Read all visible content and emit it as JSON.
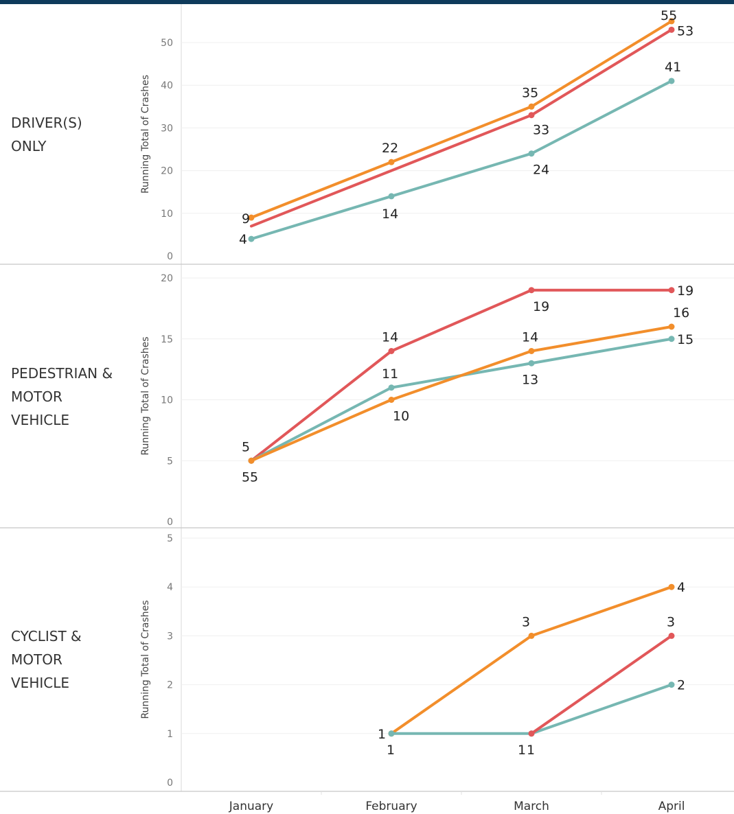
{
  "colors": {
    "series_a": "#e15759",
    "series_b": "#f28e2b",
    "series_c": "#76b7b2",
    "header_bar": "#0e3a5b"
  },
  "chart_data": {
    "type": "line",
    "x": [
      "January",
      "February",
      "March",
      "April"
    ],
    "ylabel": "Running Total of Crashes",
    "grid": true,
    "panels": [
      {
        "label_lines": [
          "DRIVER(S)",
          "ONLY"
        ],
        "ylim": [
          0,
          55
        ],
        "yticks": [
          0,
          10,
          20,
          30,
          40,
          50
        ],
        "series": [
          {
            "color": "#f28e2b",
            "values": [
              9,
              22,
              35,
              55
            ],
            "show_points": [
              true,
              true,
              true,
              true
            ],
            "labels": [
              "9",
              "22",
              "35",
              "55"
            ]
          },
          {
            "color": "#e15759",
            "values": [
              7,
              20,
              33,
              53
            ],
            "show_points": [
              false,
              false,
              true,
              true
            ],
            "labels": [
              "",
              "",
              "33",
              "53"
            ]
          },
          {
            "color": "#76b7b2",
            "values": [
              4,
              14,
              24,
              41
            ],
            "show_points": [
              true,
              true,
              true,
              true
            ],
            "labels": [
              "4",
              "14",
              "24",
              "41"
            ]
          }
        ]
      },
      {
        "label_lines": [
          "PEDESTRIAN &",
          "MOTOR",
          "VEHICLE"
        ],
        "ylim": [
          0,
          20
        ],
        "yticks": [
          0,
          5,
          10,
          15,
          20
        ],
        "series": [
          {
            "color": "#e15759",
            "values": [
              5,
              14,
              19,
              19
            ],
            "show_points": [
              true,
              true,
              true,
              true
            ],
            "labels": [
              "5",
              "14",
              "19",
              "19"
            ]
          },
          {
            "color": "#76b7b2",
            "values": [
              5,
              11,
              13,
              15
            ],
            "show_points": [
              true,
              true,
              true,
              true
            ],
            "labels": [
              "5",
              "11",
              "13",
              "15"
            ]
          },
          {
            "color": "#f28e2b",
            "values": [
              5,
              10,
              14,
              16
            ],
            "show_points": [
              true,
              true,
              true,
              true
            ],
            "labels": [
              "5",
              "10",
              "14",
              "16"
            ]
          }
        ]
      },
      {
        "label_lines": [
          "CYCLIST &",
          "MOTOR",
          "VEHICLE"
        ],
        "ylim": [
          0,
          5
        ],
        "yticks": [
          0,
          1,
          2,
          3,
          4,
          5
        ],
        "series": [
          {
            "color": "#f28e2b",
            "values": [
              null,
              1,
              3,
              4
            ],
            "show_points": [
              false,
              true,
              true,
              true
            ],
            "labels": [
              "",
              "1",
              "3",
              "4"
            ]
          },
          {
            "color": "#76b7b2",
            "values": [
              null,
              1,
              1,
              2
            ],
            "show_points": [
              false,
              true,
              true,
              true
            ],
            "labels": [
              "",
              "1",
              "1",
              "2"
            ]
          },
          {
            "color": "#e15759",
            "values": [
              null,
              null,
              1,
              3
            ],
            "show_points": [
              false,
              false,
              true,
              true
            ],
            "labels": [
              "",
              "",
              "1",
              "3"
            ]
          }
        ]
      }
    ]
  }
}
